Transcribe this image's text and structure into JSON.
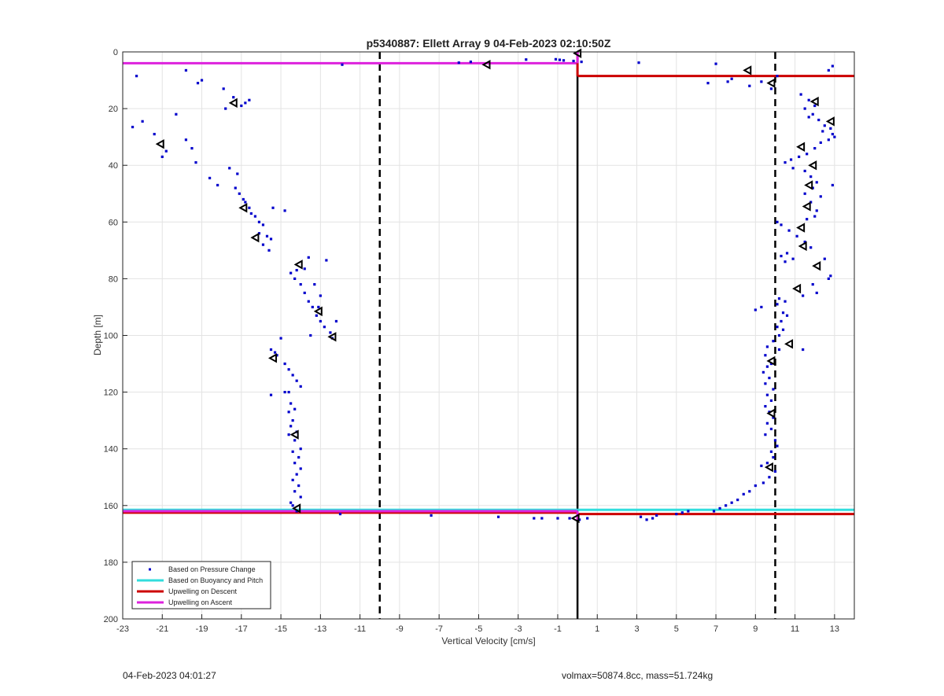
{
  "chart_data": {
    "type": "scatter",
    "title": "p5340887: Ellett Array 9 04-Feb-2023 02:10:50Z",
    "xlabel": "Vertical Velocity [cm/s]",
    "ylabel": "Depth [m]",
    "xlim": [
      -23,
      14
    ],
    "ylim": [
      200,
      0
    ],
    "y_reversed": true,
    "grid": true,
    "legend_position": "bottom-left",
    "x_ticks": [
      -23,
      -21,
      -19,
      -17,
      -15,
      -13,
      -11,
      -9,
      -7,
      -5,
      -3,
      -1,
      1,
      3,
      5,
      7,
      9,
      11,
      13
    ],
    "y_ticks": [
      0,
      20,
      40,
      60,
      80,
      100,
      120,
      140,
      160,
      180,
      200
    ],
    "colors": {
      "pressure": "#0000cc",
      "buoyancy": "#33dddd",
      "descent": "#cc0000",
      "ascent": "#dd22dd",
      "reference": "#000000"
    },
    "series": [
      {
        "name": "Based on Pressure Change",
        "marker": "point",
        "points": [
          [
            -22.3,
            8.5
          ],
          [
            -22.5,
            26.5
          ],
          [
            -22.0,
            24.5
          ],
          [
            -21.4,
            29
          ],
          [
            -21.0,
            37
          ],
          [
            -20.8,
            35
          ],
          [
            -20.3,
            22
          ],
          [
            -19.8,
            31
          ],
          [
            -19.5,
            34
          ],
          [
            -19.3,
            39
          ],
          [
            -19.2,
            11
          ],
          [
            -19.8,
            6.5
          ],
          [
            -19.0,
            10
          ],
          [
            -18.6,
            44.5
          ],
          [
            -18.2,
            47
          ],
          [
            -17.9,
            13
          ],
          [
            -17.8,
            20
          ],
          [
            -17.6,
            41
          ],
          [
            -17.2,
            43
          ],
          [
            -17.4,
            16
          ],
          [
            -17.0,
            19
          ],
          [
            -16.8,
            18
          ],
          [
            -16.6,
            17
          ],
          [
            -17.3,
            48
          ],
          [
            -17.1,
            50
          ],
          [
            -16.9,
            52
          ],
          [
            -16.8,
            53
          ],
          [
            -16.6,
            55
          ],
          [
            -16.5,
            57
          ],
          [
            -16.3,
            58
          ],
          [
            -16.1,
            60
          ],
          [
            -15.9,
            61
          ],
          [
            -16.1,
            64
          ],
          [
            -15.7,
            65
          ],
          [
            -15.9,
            68
          ],
          [
            -15.6,
            70
          ],
          [
            -15.5,
            66
          ],
          [
            -15.4,
            55
          ],
          [
            -14.8,
            56
          ],
          [
            -14.5,
            78
          ],
          [
            -14.3,
            80
          ],
          [
            -14.0,
            82
          ],
          [
            -13.8,
            85
          ],
          [
            -13.6,
            88
          ],
          [
            -13.4,
            90
          ],
          [
            -13.2,
            93
          ],
          [
            -13.0,
            95
          ],
          [
            -12.8,
            97
          ],
          [
            -12.5,
            99
          ],
          [
            -12.2,
            95
          ],
          [
            -12.4,
            101
          ],
          [
            -13.5,
            100
          ],
          [
            -13.6,
            72.5
          ],
          [
            -13.8,
            76.5
          ],
          [
            -14.2,
            77
          ],
          [
            -12.7,
            73.5
          ],
          [
            -13.3,
            82
          ],
          [
            -13.0,
            86
          ],
          [
            -13.1,
            90
          ],
          [
            -15.5,
            105
          ],
          [
            -15.3,
            106
          ],
          [
            -15.0,
            101
          ],
          [
            -15.2,
            107
          ],
          [
            -14.8,
            110
          ],
          [
            -14.6,
            112
          ],
          [
            -14.4,
            114
          ],
          [
            -14.2,
            116
          ],
          [
            -14.0,
            118
          ],
          [
            -14.8,
            120
          ],
          [
            -14.5,
            124
          ],
          [
            -14.3,
            126
          ],
          [
            -14.6,
            127
          ],
          [
            -14.4,
            130
          ],
          [
            -14.5,
            132
          ],
          [
            -14.2,
            134
          ],
          [
            -14.6,
            135
          ],
          [
            -14.3,
            137
          ],
          [
            -14.0,
            140
          ],
          [
            -14.4,
            141
          ],
          [
            -14.1,
            143
          ],
          [
            -14.3,
            145
          ],
          [
            -14.0,
            147
          ],
          [
            -14.2,
            149
          ],
          [
            -14.4,
            151
          ],
          [
            -14.1,
            153
          ],
          [
            -14.3,
            155
          ],
          [
            -14.0,
            157
          ],
          [
            -14.5,
            159
          ],
          [
            -14.6,
            120
          ],
          [
            -14.4,
            160
          ],
          [
            -14.2,
            162
          ],
          [
            -12.0,
            163
          ],
          [
            -15.5,
            121
          ],
          [
            -11.9,
            4.5
          ],
          [
            -5.4,
            3.5
          ],
          [
            -6.0,
            3.8
          ],
          [
            -2.6,
            2.7
          ],
          [
            -1.1,
            2.6
          ],
          [
            -0.9,
            2.8
          ],
          [
            -0.7,
            3.0
          ],
          [
            -0.2,
            3.2
          ],
          [
            0.2,
            3.5
          ],
          [
            -7.4,
            163.5
          ],
          [
            -4.0,
            164
          ],
          [
            -2.2,
            164.5
          ],
          [
            -1.8,
            164.5
          ],
          [
            -1.0,
            164.5
          ],
          [
            -0.4,
            164.5
          ],
          [
            0.1,
            165
          ],
          [
            0.5,
            164.5
          ],
          [
            3.2,
            164
          ],
          [
            3.5,
            165
          ],
          [
            3.8,
            164.5
          ],
          [
            4.0,
            163.5
          ],
          [
            5.0,
            163
          ],
          [
            5.3,
            162.5
          ],
          [
            5.6,
            162
          ],
          [
            3.1,
            3.8
          ],
          [
            7.0,
            4.2
          ],
          [
            7.6,
            10.5
          ],
          [
            6.6,
            11
          ],
          [
            7.8,
            9.5
          ],
          [
            8.7,
            12
          ],
          [
            9.3,
            10.5
          ],
          [
            9.8,
            13
          ],
          [
            10.1,
            8.5
          ],
          [
            12.9,
            5
          ],
          [
            12.7,
            6.5
          ],
          [
            11.3,
            15
          ],
          [
            11.7,
            17
          ],
          [
            12.0,
            19
          ],
          [
            11.5,
            20
          ],
          [
            11.9,
            22
          ],
          [
            11.7,
            23
          ],
          [
            12.2,
            24
          ],
          [
            12.5,
            26
          ],
          [
            12.8,
            27
          ],
          [
            12.4,
            28
          ],
          [
            12.9,
            29
          ],
          [
            12.7,
            31
          ],
          [
            13.0,
            30
          ],
          [
            12.3,
            32
          ],
          [
            12.0,
            34
          ],
          [
            11.6,
            36
          ],
          [
            11.2,
            37
          ],
          [
            10.8,
            38
          ],
          [
            10.5,
            39
          ],
          [
            10.9,
            41
          ],
          [
            11.5,
            42
          ],
          [
            11.8,
            44
          ],
          [
            12.1,
            46
          ],
          [
            12.9,
            47
          ],
          [
            11.9,
            48
          ],
          [
            11.5,
            50
          ],
          [
            12.3,
            51
          ],
          [
            11.8,
            53
          ],
          [
            12.1,
            56
          ],
          [
            12.0,
            58
          ],
          [
            11.6,
            59
          ],
          [
            10.1,
            60
          ],
          [
            10.3,
            61
          ],
          [
            10.7,
            63
          ],
          [
            11.1,
            65
          ],
          [
            11.5,
            67
          ],
          [
            11.8,
            69
          ],
          [
            10.6,
            71
          ],
          [
            10.3,
            72
          ],
          [
            10.9,
            73
          ],
          [
            10.5,
            74
          ],
          [
            12.5,
            73
          ],
          [
            12.8,
            79
          ],
          [
            12.7,
            80
          ],
          [
            11.9,
            82
          ],
          [
            12.1,
            85
          ],
          [
            11.4,
            86
          ],
          [
            10.2,
            87
          ],
          [
            10.5,
            88
          ],
          [
            10.1,
            89
          ],
          [
            9.0,
            91
          ],
          [
            9.3,
            90
          ],
          [
            10.4,
            92
          ],
          [
            10.6,
            93
          ],
          [
            10.3,
            95
          ],
          [
            10.1,
            97
          ],
          [
            10.4,
            98
          ],
          [
            10.2,
            100
          ],
          [
            9.9,
            102
          ],
          [
            9.6,
            104
          ],
          [
            11.4,
            105
          ],
          [
            10.2,
            105
          ],
          [
            9.5,
            107
          ],
          [
            9.8,
            110
          ],
          [
            9.6,
            111
          ],
          [
            9.4,
            113
          ],
          [
            9.7,
            115
          ],
          [
            9.5,
            117
          ],
          [
            9.9,
            119
          ],
          [
            9.6,
            121
          ],
          [
            9.8,
            123
          ],
          [
            9.5,
            125
          ],
          [
            9.7,
            127
          ],
          [
            9.9,
            129
          ],
          [
            9.6,
            131
          ],
          [
            9.8,
            133
          ],
          [
            9.5,
            135
          ],
          [
            10.0,
            137
          ],
          [
            10.1,
            139
          ],
          [
            9.8,
            141
          ],
          [
            9.9,
            143
          ],
          [
            9.6,
            145
          ],
          [
            9.3,
            146
          ],
          [
            10.0,
            148
          ],
          [
            9.7,
            150
          ],
          [
            9.4,
            152
          ],
          [
            9.0,
            153
          ],
          [
            8.7,
            155
          ],
          [
            8.4,
            156
          ],
          [
            8.1,
            158
          ],
          [
            7.8,
            159
          ],
          [
            7.5,
            160
          ],
          [
            7.2,
            161
          ],
          [
            6.9,
            162
          ]
        ]
      },
      {
        "name": "Based on Buoyancy and Pitch",
        "marker": "line",
        "lines": [
          [
            -23,
            0,
            161.5
          ],
          [
            0,
            14,
            161.5
          ]
        ]
      },
      {
        "name": "Upwelling on Descent",
        "marker": "line",
        "lines": [
          [
            0,
            14,
            8.5
          ],
          [
            -23,
            0,
            162.5
          ],
          [
            0,
            14,
            163.0
          ]
        ]
      },
      {
        "name": "Upwelling on Ascent",
        "marker": "line",
        "lines": [
          [
            -23,
            0,
            4.0
          ],
          [
            -23,
            0,
            162.0
          ]
        ]
      }
    ],
    "triangle_markers": [
      [
        0.0,
        0.5
      ],
      [
        -4.6,
        4.5
      ],
      [
        8.6,
        6.5
      ],
      [
        9.8,
        11
      ],
      [
        -17.4,
        18
      ],
      [
        12.0,
        17.5
      ],
      [
        12.8,
        24.5
      ],
      [
        -21.1,
        32.5
      ],
      [
        11.3,
        33.5
      ],
      [
        11.9,
        40
      ],
      [
        11.7,
        47
      ],
      [
        -16.9,
        55
      ],
      [
        11.6,
        54.5
      ],
      [
        11.3,
        62
      ],
      [
        -16.3,
        65.5
      ],
      [
        11.4,
        68.5
      ],
      [
        -14.1,
        75
      ],
      [
        12.1,
        75.5
      ],
      [
        11.1,
        83.5
      ],
      [
        -13.1,
        91.5
      ],
      [
        -12.4,
        100.5
      ],
      [
        10.7,
        103
      ],
      [
        -15.4,
        108
      ],
      [
        9.8,
        109
      ],
      [
        9.8,
        127.5
      ],
      [
        -14.3,
        135
      ],
      [
        9.7,
        146.5
      ],
      [
        -14.2,
        161
      ],
      [
        -0.1,
        164.5
      ]
    ],
    "reference_lines": {
      "vertical_solid_x": 0,
      "vertical_dashed_x": [
        -10,
        10
      ],
      "descent_connector": [
        0,
        0,
        8.5
      ],
      "ascent_connector": [
        0,
        0,
        4.0
      ],
      "bottom_connector": [
        0,
        162,
        165
      ]
    }
  },
  "footer": {
    "left": "04-Feb-2023 04:01:27",
    "right": "volmax=50874.8cc, mass=51.724kg"
  }
}
